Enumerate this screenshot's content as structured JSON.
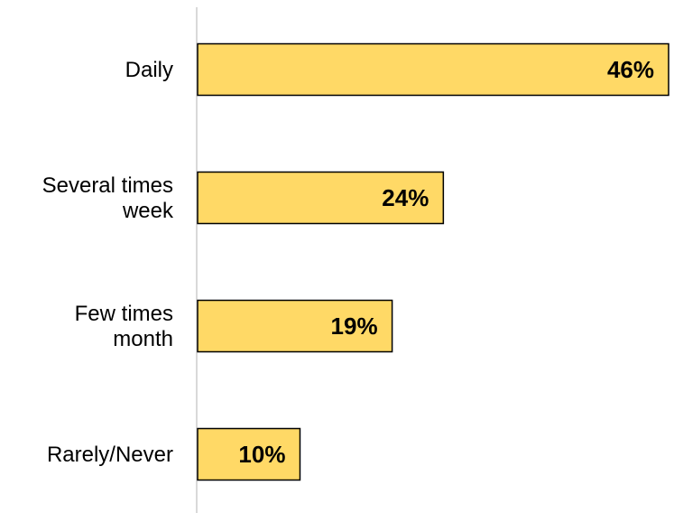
{
  "chart_data": {
    "type": "bar",
    "orientation": "horizontal",
    "categories": [
      [
        "Daily"
      ],
      [
        "Several times",
        "week"
      ],
      [
        "Few times",
        "month"
      ],
      [
        "Rarely/Never"
      ]
    ],
    "values": [
      46,
      24,
      19,
      10
    ],
    "value_labels": [
      "46%",
      "24%",
      "19%",
      "10%"
    ],
    "unit": "%",
    "title": "",
    "xlabel": "",
    "ylabel": "",
    "xlim": [
      0,
      46
    ],
    "grid": false,
    "legend": "none",
    "colors": {
      "bar_fill": "#FFD966",
      "bar_stroke": "#000000",
      "axis": "#D9D9D9"
    }
  }
}
